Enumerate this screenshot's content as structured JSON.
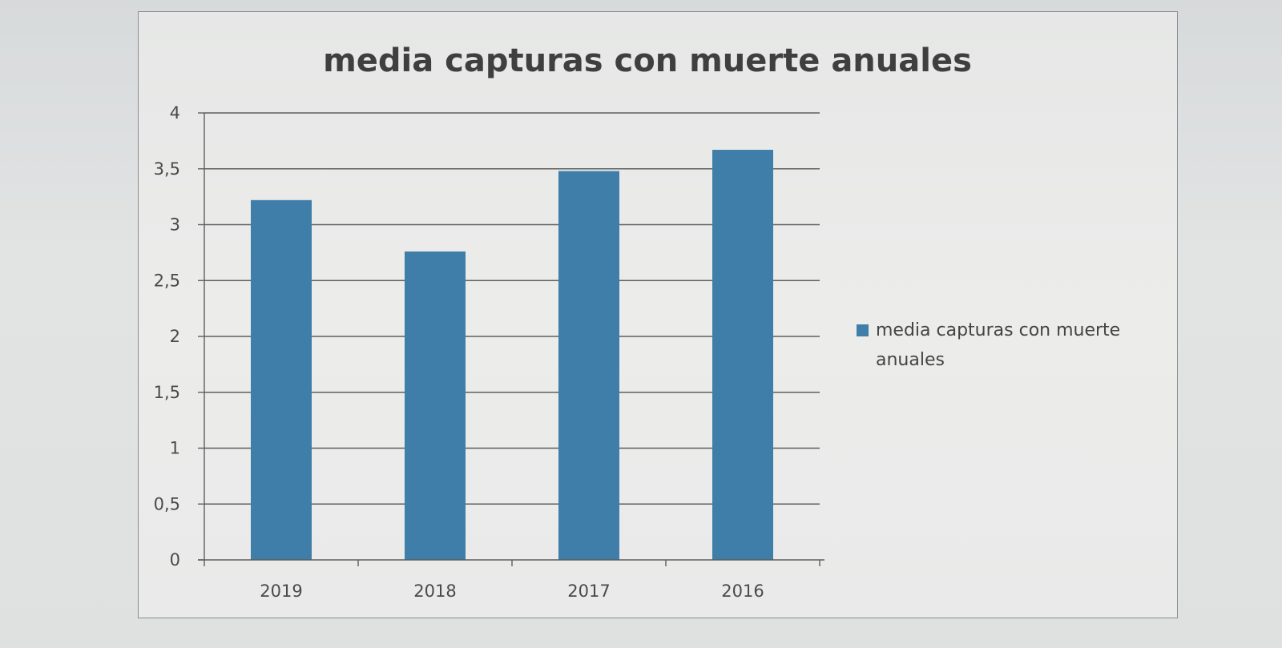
{
  "chart_data": {
    "type": "bar",
    "title": "media capturas con muerte anuales",
    "categories": [
      "2019",
      "2018",
      "2017",
      "2016"
    ],
    "series": [
      {
        "name": "media capturas con muerte anuales",
        "values": [
          3.22,
          2.76,
          3.48,
          3.67
        ]
      }
    ],
    "ylim": [
      0,
      4
    ],
    "yticks": [
      0,
      0.5,
      1,
      1.5,
      2,
      2.5,
      3,
      3.5,
      4
    ],
    "ytick_labels": [
      "0",
      "0,5",
      "1",
      "1,5",
      "2",
      "2,5",
      "3",
      "3,5",
      "4"
    ],
    "grid": true,
    "legend_position": "right",
    "legend_lines": [
      "media capturas con muerte",
      "anuales"
    ],
    "bar_color": "#3f7ea9",
    "grid_color": "#5e5e5e"
  }
}
